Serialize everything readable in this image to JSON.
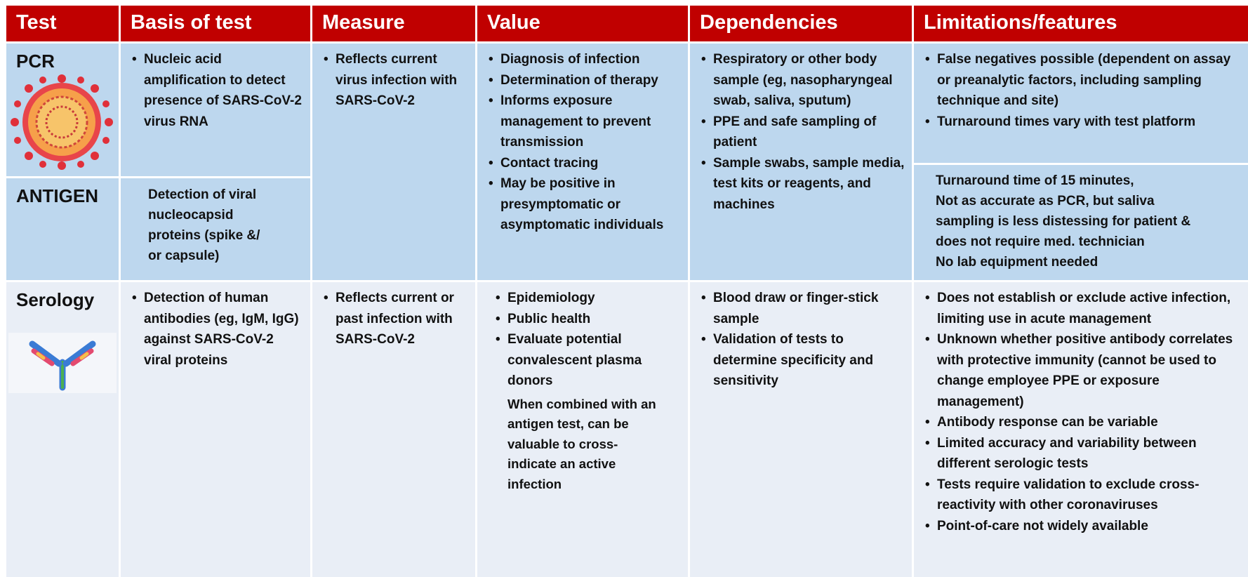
{
  "header": [
    "Test",
    "Basis of test",
    "Measure",
    "Value",
    "Dependencies",
    "Limitations/features"
  ],
  "rows": [
    {
      "test": "PCR",
      "basis": [
        "Nucleic acid amplification to detect presence of SARS-CoV-2 virus RNA"
      ],
      "measure": [
        "Reflects current virus infection with SARS-CoV-2"
      ],
      "value": [
        "Diagnosis of infection",
        "Determination of therapy",
        "Informs exposure management to prevent transmission",
        "Contact tracing",
        "May be positive in presymptomatic or asymptomatic individuals"
      ],
      "dependencies": [
        "Respiratory or other body sample (eg, nasopharyngeal swab, saliva, sputum)",
        "PPE and safe sampling of patient",
        "Sample swabs, sample media, test kits or reagents, and machines"
      ],
      "limitations": [
        "False negatives possible (dependent on assay or preanalytic factors, including sampling technique and site)",
        "Turnaround times vary with test platform"
      ]
    },
    {
      "test": "ANTIGEN",
      "basis": [
        "Detection of viral",
        "nucleocapsid",
        "proteins (spike &/",
        "or capsule)"
      ],
      "limitations": [
        "Turnaround time of 15 minutes,",
        "Not as accurate as PCR, but saliva",
        "sampling is less distessing for patient &",
        "does not require med. technician",
        "No lab equipment needed"
      ]
    },
    {
      "test": "Serology",
      "basis": [
        "Detection of human antibodies (eg, IgM, IgG) against SARS-CoV-2 viral proteins"
      ],
      "measure": [
        "Reflects current or past infection with SARS-CoV-2"
      ],
      "value": [
        "Epidemiology",
        "Public health",
        "Evaluate potential convalescent plasma donors"
      ],
      "value_note": [
        "When combined with an",
        "antigen test, can be",
        "valuable to cross-",
        "indicate an active",
        "infection"
      ],
      "dependencies": [
        "Blood draw or finger-stick sample",
        "Validation of tests to determine specificity and sensitivity"
      ],
      "limitations": [
        "Does not establish or exclude active infection, limiting use in acute management",
        "Unknown whether positive antibody correlates with protective immunity (cannot be used to change employee PPE or exposure management)",
        "Antibody response can be variable",
        "Limited accuracy and variability between different serologic tests",
        "Tests require validation to exclude cross-reactivity with other coronaviruses",
        "Point-of-care not widely available"
      ]
    }
  ]
}
